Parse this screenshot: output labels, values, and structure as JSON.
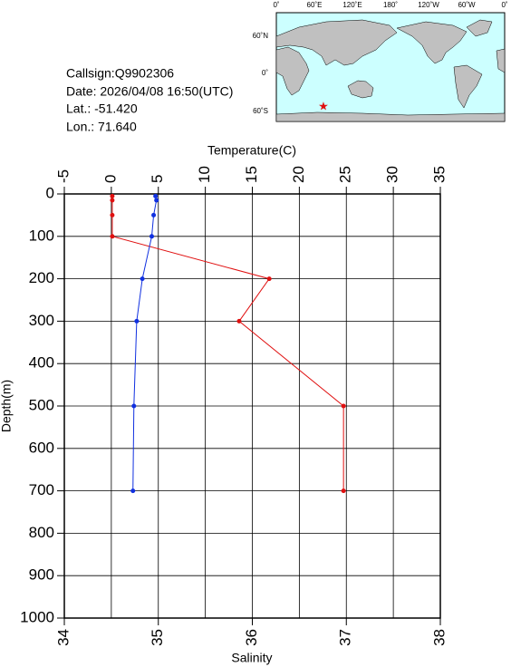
{
  "info": {
    "callsign": "Callsign:Q9902306",
    "date": "Date:  2026/04/08 16:50(UTC)",
    "lat": "Lat.:  -51.420",
    "lon": "Lon.:   71.640"
  },
  "map": {
    "top_labels": [
      "0˚",
      "60˚E",
      "120˚E",
      "180˚",
      "120˚W",
      "60˚W",
      "0˚"
    ],
    "left_labels": [
      "60˚N",
      "0˚",
      "60˚S"
    ]
  },
  "chart_data": {
    "type": "line",
    "xlabel": "Temperature(C)",
    "x2label": "Salinity",
    "ylabel": "Depth(m)",
    "y": [
      5,
      15,
      50,
      100,
      200,
      300,
      500,
      700
    ],
    "series": [
      {
        "axis": "x",
        "color": "#e01010",
        "values": [
          0.1,
          0.1,
          0.1,
          0.1,
          16.8,
          13.6,
          24.7,
          24.7
        ]
      },
      {
        "axis": "x2",
        "color": "#1030e0",
        "values": [
          34.97,
          34.98,
          34.95,
          34.93,
          34.83,
          34.77,
          34.74,
          34.73
        ]
      }
    ],
    "xlim": [
      -5,
      35
    ],
    "xticks": [
      -5,
      0,
      5,
      10,
      15,
      20,
      25,
      30,
      35
    ],
    "x2lim": [
      34,
      38
    ],
    "x2ticks": [
      34,
      35,
      36,
      37,
      38
    ],
    "ylim": [
      0,
      1000
    ],
    "yticks": [
      0,
      100,
      200,
      300,
      400,
      500,
      600,
      700,
      800,
      900,
      1000
    ],
    "y_inverted": true,
    "grid": true
  }
}
